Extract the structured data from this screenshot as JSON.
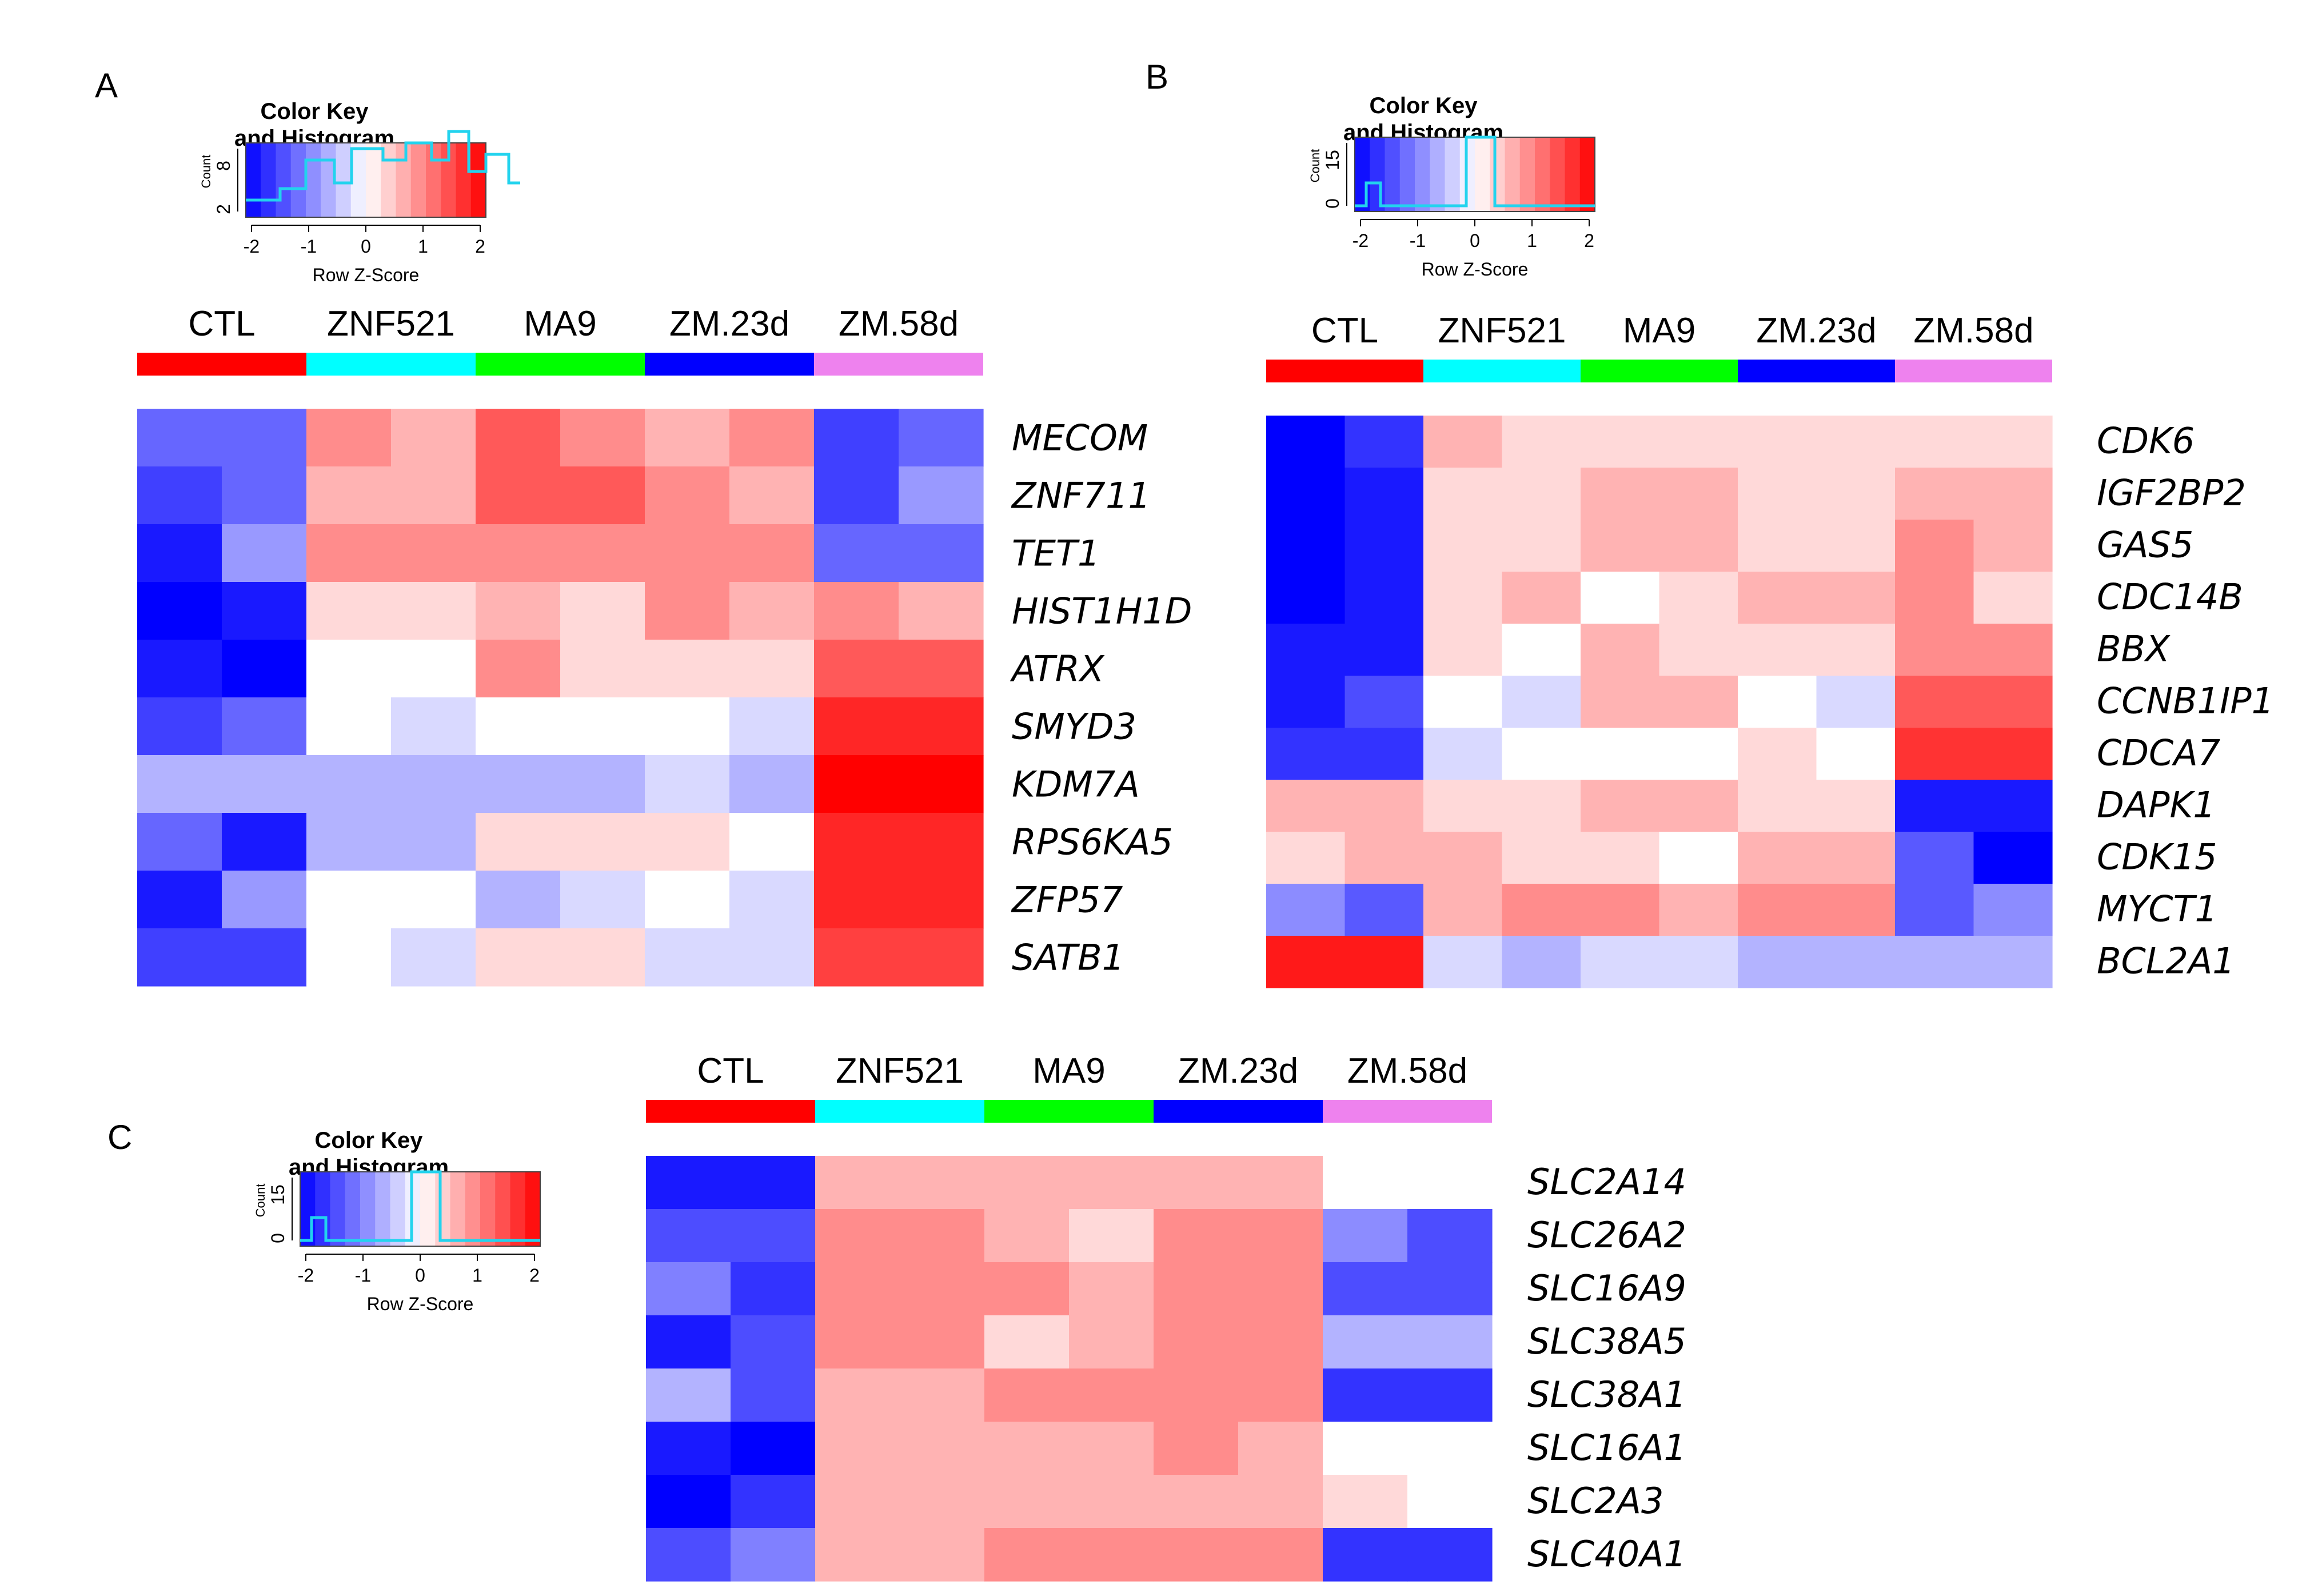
{
  "groups": [
    "CTL",
    "ZNF521",
    "MA9",
    "ZM.23d",
    "ZM.58d"
  ],
  "group_colors": [
    "#ff0000",
    "#00ffff",
    "#00ff00",
    "#0000ff",
    "#ee82ee"
  ],
  "color_key": {
    "title_line1": "Color Key",
    "title_line2": "and Histogram",
    "xlabel": "Row Z-Score",
    "ylabel": "Count",
    "ticks": [
      "-2",
      "-1",
      "0",
      "1",
      "2"
    ]
  },
  "chart_data": [
    {
      "type": "heatmap",
      "panel": "A",
      "key_counts": [
        "2",
        "8"
      ],
      "columns": [
        "CTL",
        "CTL",
        "ZNF521",
        "ZNF521",
        "MA9",
        "MA9",
        "ZM.23d",
        "ZM.23d",
        "ZM.58d",
        "ZM.58d"
      ],
      "rows": [
        "MECOM",
        "ZNF711",
        "TET1",
        "HIST1H1D",
        "ATRX",
        "SMYD3",
        "KDM7A",
        "RPS6KA5",
        "ZFP57",
        "SATB1"
      ],
      "values": [
        [
          -1.2,
          -1.2,
          0.9,
          0.6,
          1.3,
          0.9,
          0.6,
          0.9,
          -1.5,
          -1.2
        ],
        [
          -1.5,
          -1.2,
          0.6,
          0.6,
          1.3,
          1.3,
          0.9,
          0.6,
          -1.5,
          -0.8
        ],
        [
          -1.8,
          -0.8,
          0.9,
          0.9,
          0.9,
          0.9,
          0.9,
          0.9,
          -1.2,
          -1.2
        ],
        [
          -2.0,
          -1.8,
          0.3,
          0.3,
          0.6,
          0.3,
          0.9,
          0.6,
          0.9,
          0.6
        ],
        [
          -1.8,
          -2.0,
          0.0,
          0.0,
          0.9,
          0.3,
          0.3,
          0.3,
          1.3,
          1.3
        ],
        [
          -1.5,
          -1.2,
          0.0,
          -0.3,
          0.0,
          0.0,
          0.0,
          -0.3,
          1.7,
          1.7
        ],
        [
          -0.6,
          -0.6,
          -0.6,
          -0.6,
          -0.6,
          -0.6,
          -0.3,
          -0.6,
          2.0,
          2.0
        ],
        [
          -1.2,
          -1.8,
          -0.6,
          -0.6,
          0.3,
          0.3,
          0.3,
          0.0,
          1.7,
          1.7
        ],
        [
          -1.8,
          -0.8,
          0.0,
          0.0,
          -0.6,
          -0.3,
          0.0,
          -0.3,
          1.7,
          1.7
        ],
        [
          -1.5,
          -1.5,
          0.0,
          -0.3,
          0.3,
          0.3,
          -0.3,
          -0.3,
          1.5,
          1.5
        ]
      ],
      "xlabel": "Row Z-Score",
      "color_range": [
        -2,
        2
      ]
    },
    {
      "type": "heatmap",
      "panel": "B",
      "key_counts": [
        "0",
        "15"
      ],
      "columns": [
        "CTL",
        "CTL",
        "ZNF521",
        "ZNF521",
        "MA9",
        "MA9",
        "ZM.23d",
        "ZM.23d",
        "ZM.58d",
        "ZM.58d"
      ],
      "rows": [
        "CDK6",
        "IGF2BP2",
        "GAS5",
        "CDC14B",
        "BBX",
        "CCNB1IP1",
        "CDCA7",
        "DAPK1",
        "CDK15",
        "MYCT1",
        "BCL2A1"
      ],
      "values": [
        [
          -2.0,
          -1.6,
          0.6,
          0.3,
          0.3,
          0.3,
          0.3,
          0.3,
          0.3,
          0.3
        ],
        [
          -2.0,
          -1.8,
          0.3,
          0.3,
          0.6,
          0.6,
          0.3,
          0.3,
          0.6,
          0.6
        ],
        [
          -2.0,
          -1.8,
          0.3,
          0.3,
          0.6,
          0.6,
          0.3,
          0.3,
          0.9,
          0.6
        ],
        [
          -2.0,
          -1.8,
          0.3,
          0.6,
          0.0,
          0.3,
          0.6,
          0.6,
          0.9,
          0.3
        ],
        [
          -1.8,
          -1.8,
          0.3,
          0.0,
          0.6,
          0.3,
          0.3,
          0.3,
          0.9,
          0.9
        ],
        [
          -1.8,
          -1.4,
          0.0,
          -0.3,
          0.6,
          0.6,
          0.0,
          -0.3,
          1.3,
          1.3
        ],
        [
          -1.6,
          -1.6,
          -0.3,
          0.0,
          0.0,
          0.0,
          0.3,
          0.0,
          1.6,
          1.6
        ],
        [
          0.6,
          0.6,
          0.3,
          0.3,
          0.6,
          0.6,
          0.3,
          0.3,
          -1.8,
          -1.8
        ],
        [
          0.3,
          0.6,
          0.6,
          0.3,
          0.3,
          0.0,
          0.6,
          0.6,
          -1.3,
          -2.0
        ],
        [
          -0.9,
          -1.3,
          0.6,
          0.9,
          0.9,
          0.6,
          0.9,
          0.9,
          -1.3,
          -0.9
        ],
        [
          1.8,
          1.8,
          -0.3,
          -0.6,
          -0.3,
          -0.3,
          -0.6,
          -0.6,
          -0.6,
          -0.6
        ]
      ],
      "xlabel": "Row Z-Score",
      "color_range": [
        -2,
        2
      ]
    },
    {
      "type": "heatmap",
      "panel": "C",
      "key_counts": [
        "0",
        "15"
      ],
      "columns": [
        "CTL",
        "CTL",
        "ZNF521",
        "ZNF521",
        "MA9",
        "MA9",
        "ZM.23d",
        "ZM.23d",
        "ZM.58d",
        "ZM.58d"
      ],
      "rows": [
        "SLC2A14",
        "SLC26A2",
        "SLC16A9",
        "SLC38A5",
        "SLC38A1",
        "SLC16A1",
        "SLC2A3",
        "SLC40A1"
      ],
      "values": [
        [
          -1.8,
          -1.8,
          0.6,
          0.6,
          0.6,
          0.6,
          0.6,
          0.6,
          0.0,
          0.0
        ],
        [
          -1.4,
          -1.4,
          0.9,
          0.9,
          0.6,
          0.3,
          0.9,
          0.9,
          -0.9,
          -1.4
        ],
        [
          -1.0,
          -1.6,
          0.9,
          0.9,
          0.9,
          0.6,
          0.9,
          0.9,
          -1.4,
          -1.4
        ],
        [
          -1.8,
          -1.4,
          0.9,
          0.9,
          0.3,
          0.6,
          0.9,
          0.9,
          -0.6,
          -0.6
        ],
        [
          -0.6,
          -1.4,
          0.6,
          0.6,
          0.9,
          0.9,
          0.9,
          0.9,
          -1.6,
          -1.6
        ],
        [
          -1.8,
          -2.0,
          0.6,
          0.6,
          0.6,
          0.6,
          0.9,
          0.6,
          0.0,
          0.0
        ],
        [
          -2.0,
          -1.6,
          0.6,
          0.6,
          0.6,
          0.6,
          0.6,
          0.6,
          0.3,
          0.0
        ],
        [
          -1.4,
          -1.0,
          0.6,
          0.6,
          0.9,
          0.9,
          0.9,
          0.9,
          -1.6,
          -1.6
        ]
      ],
      "xlabel": "Row Z-Score",
      "color_range": [
        -2,
        2
      ]
    }
  ]
}
